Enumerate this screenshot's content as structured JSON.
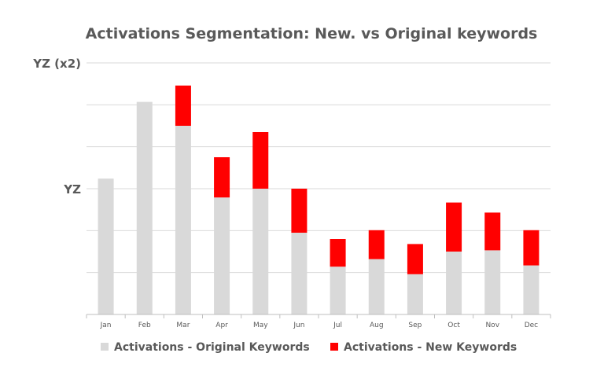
{
  "chart_data": {
    "type": "bar",
    "stacked": true,
    "title": "Activations Segmentation: New. vs Original keywords",
    "xlabel": "",
    "ylabel": "",
    "categories": [
      "Jan",
      "Feb",
      "Mar",
      "Apr",
      "May",
      "Jun",
      "Jul",
      "Aug",
      "Sep",
      "Oct",
      "Nov",
      "Dec"
    ],
    "y_ticks": [
      {
        "value": 1,
        "label": "YZ"
      },
      {
        "value": 2,
        "label": "YZ (x2)"
      }
    ],
    "ylim": [
      0,
      2
    ],
    "grid": true,
    "legend_position": "bottom",
    "series": [
      {
        "name": "Activations - Original Keywords",
        "color": "#d9d9d9",
        "values": [
          1.08,
          1.69,
          1.5,
          0.93,
          1.0,
          0.65,
          0.38,
          0.44,
          0.32,
          0.5,
          0.51,
          0.39
        ]
      },
      {
        "name": "Activations - New Keywords",
        "color": "#ff0000",
        "values": [
          0,
          0,
          0.32,
          0.32,
          0.45,
          0.35,
          0.22,
          0.23,
          0.24,
          0.39,
          0.3,
          0.28
        ]
      }
    ]
  }
}
